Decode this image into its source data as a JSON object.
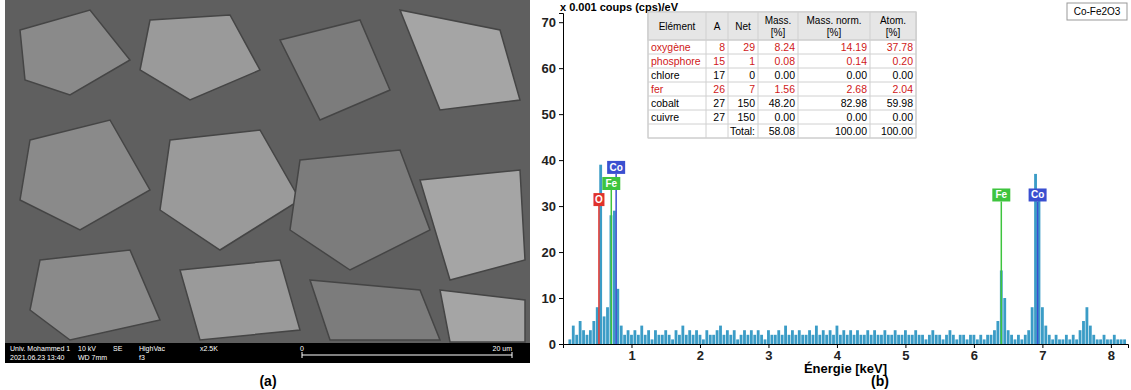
{
  "captions": [
    "(a)",
    "(b)"
  ],
  "sem_image": {
    "line1": [
      "Univ. Mohammed 1",
      "10 kV",
      "SE",
      "HighVac",
      "x2.5K"
    ],
    "line2": [
      "2021.06.23 13:40",
      "WD 7mm",
      "f3"
    ],
    "scale": [
      "0",
      "20 um"
    ]
  },
  "table": {
    "headers": [
      [
        "Elément"
      ],
      [
        "A"
      ],
      [
        "Net"
      ],
      [
        "Mass.",
        "[%]"
      ],
      [
        "Mass. norm.",
        "[%]"
      ],
      [
        "Atom.",
        "[%]"
      ]
    ],
    "rows": [
      {
        "cells": [
          "oxygène",
          "8",
          "29",
          "8.24",
          "14.19",
          "37.78"
        ],
        "color": "#d01818"
      },
      {
        "cells": [
          "phosphore",
          "15",
          "1",
          "0.08",
          "0.14",
          "0.20"
        ],
        "color": "#d01818"
      },
      {
        "cells": [
          "chlore",
          "17",
          "0",
          "0.00",
          "0.00",
          "0.00"
        ],
        "color": "#000000"
      },
      {
        "cells": [
          "fer",
          "26",
          "7",
          "1.56",
          "2.68",
          "2.04"
        ],
        "color": "#d01818"
      },
      {
        "cells": [
          "cobalt",
          "27",
          "150",
          "48.20",
          "82.98",
          "59.98"
        ],
        "color": "#000000"
      },
      {
        "cells": [
          "cuivre",
          "27",
          "150",
          "0.00",
          "0.00",
          "0.00"
        ],
        "color": "#000000"
      }
    ],
    "total": {
      "label": "Total:",
      "cells": [
        "58.08",
        "100.00",
        "100.00"
      ]
    }
  },
  "chart_data": {
    "type": "bar",
    "y_label": "x 0.001 coups (cps)/eV",
    "x_label": "Énergie [keV]",
    "xlim": [
      0,
      8.25
    ],
    "xticks": [
      1,
      2,
      3,
      4,
      5,
      6,
      7,
      8
    ],
    "ylim": [
      0,
      72
    ],
    "yticks": [
      0,
      10,
      20,
      30,
      40,
      50,
      60,
      70
    ],
    "legend": "top-right",
    "x": [
      0.1,
      0.15,
      0.2,
      0.25,
      0.3,
      0.35,
      0.4,
      0.45,
      0.5,
      0.55,
      0.6,
      0.65,
      0.7,
      0.75,
      0.8,
      0.85,
      0.9,
      0.95,
      1.0,
      1.05,
      1.1,
      1.15,
      1.2,
      1.25,
      1.3,
      1.35,
      1.4,
      1.45,
      1.5,
      1.55,
      1.6,
      1.65,
      1.7,
      1.75,
      1.8,
      1.85,
      1.9,
      1.95,
      2.0,
      2.05,
      2.1,
      2.15,
      2.2,
      2.25,
      2.3,
      2.35,
      2.4,
      2.45,
      2.5,
      2.55,
      2.6,
      2.65,
      2.7,
      2.75,
      2.8,
      2.85,
      2.9,
      2.95,
      3.0,
      3.05,
      3.1,
      3.15,
      3.2,
      3.25,
      3.3,
      3.35,
      3.4,
      3.45,
      3.5,
      3.55,
      3.6,
      3.65,
      3.7,
      3.75,
      3.8,
      3.85,
      3.9,
      3.95,
      4.0,
      4.05,
      4.1,
      4.15,
      4.2,
      4.25,
      4.3,
      4.35,
      4.4,
      4.45,
      4.5,
      4.55,
      4.6,
      4.65,
      4.7,
      4.75,
      4.8,
      4.85,
      4.9,
      4.95,
      5.0,
      5.05,
      5.1,
      5.15,
      5.2,
      5.25,
      5.3,
      5.35,
      5.4,
      5.45,
      5.5,
      5.55,
      5.6,
      5.65,
      5.7,
      5.75,
      5.8,
      5.85,
      5.9,
      5.95,
      6.0,
      6.05,
      6.1,
      6.15,
      6.2,
      6.25,
      6.3,
      6.35,
      6.4,
      6.45,
      6.5,
      6.55,
      6.6,
      6.65,
      6.7,
      6.75,
      6.8,
      6.85,
      6.9,
      6.95,
      7.0,
      7.05,
      7.1,
      7.15,
      7.2,
      7.25,
      7.3,
      7.35,
      7.4,
      7.45,
      7.5,
      7.55,
      7.6,
      7.65,
      7.7,
      7.75,
      7.8,
      7.85,
      7.9,
      7.95,
      8.0,
      8.05,
      8.1,
      8.15,
      8.2
    ],
    "series": [
      {
        "name": "Co-Fe2O3",
        "color": "#3b9cc6",
        "values": [
          1,
          4,
          2,
          5,
          3,
          2,
          3,
          5,
          8,
          39,
          6,
          8,
          28,
          29,
          12,
          4,
          2,
          3,
          2,
          3,
          2,
          4,
          2,
          3,
          1,
          3,
          2,
          2,
          3,
          2,
          1,
          3,
          2,
          4,
          2,
          3,
          2,
          3,
          2,
          1,
          3,
          2,
          2,
          3,
          4,
          2,
          3,
          2,
          3,
          1,
          2,
          3,
          2,
          3,
          2,
          3,
          2,
          1,
          3,
          2,
          2,
          3,
          2,
          4,
          2,
          3,
          2,
          3,
          2,
          2,
          3,
          2,
          4,
          2,
          3,
          2,
          3,
          2,
          4,
          2,
          3,
          2,
          3,
          2,
          3,
          2,
          2,
          3,
          2,
          3,
          2,
          2,
          3,
          2,
          2,
          3,
          2,
          2,
          3,
          2,
          2,
          3,
          2,
          2,
          1,
          2,
          3,
          2,
          2,
          1,
          2,
          3,
          2,
          1,
          2,
          2,
          1,
          2,
          2,
          1,
          2,
          1,
          2,
          2,
          3,
          5,
          16,
          10,
          3,
          2,
          1,
          2,
          1,
          2,
          3,
          8,
          37,
          33,
          8,
          4,
          2,
          1,
          2,
          1,
          1,
          2,
          1,
          2,
          1,
          3,
          5,
          8,
          4,
          2,
          1,
          1,
          2,
          1,
          1,
          2,
          1,
          1,
          1
        ]
      }
    ],
    "annotations": [
      {
        "text": "O",
        "x": 0.525,
        "y": 30,
        "color": "#e0312b"
      },
      {
        "text": "Fe",
        "x": 0.705,
        "y": 33.5,
        "color": "#3ec43e"
      },
      {
        "text": "Co",
        "x": 0.776,
        "y": 37,
        "color": "#3a4fd0"
      },
      {
        "text": "Fe",
        "x": 6.4,
        "y": 31,
        "color": "#3ec43e"
      },
      {
        "text": "Co",
        "x": 6.93,
        "y": 31,
        "color": "#3a4fd0"
      }
    ]
  }
}
